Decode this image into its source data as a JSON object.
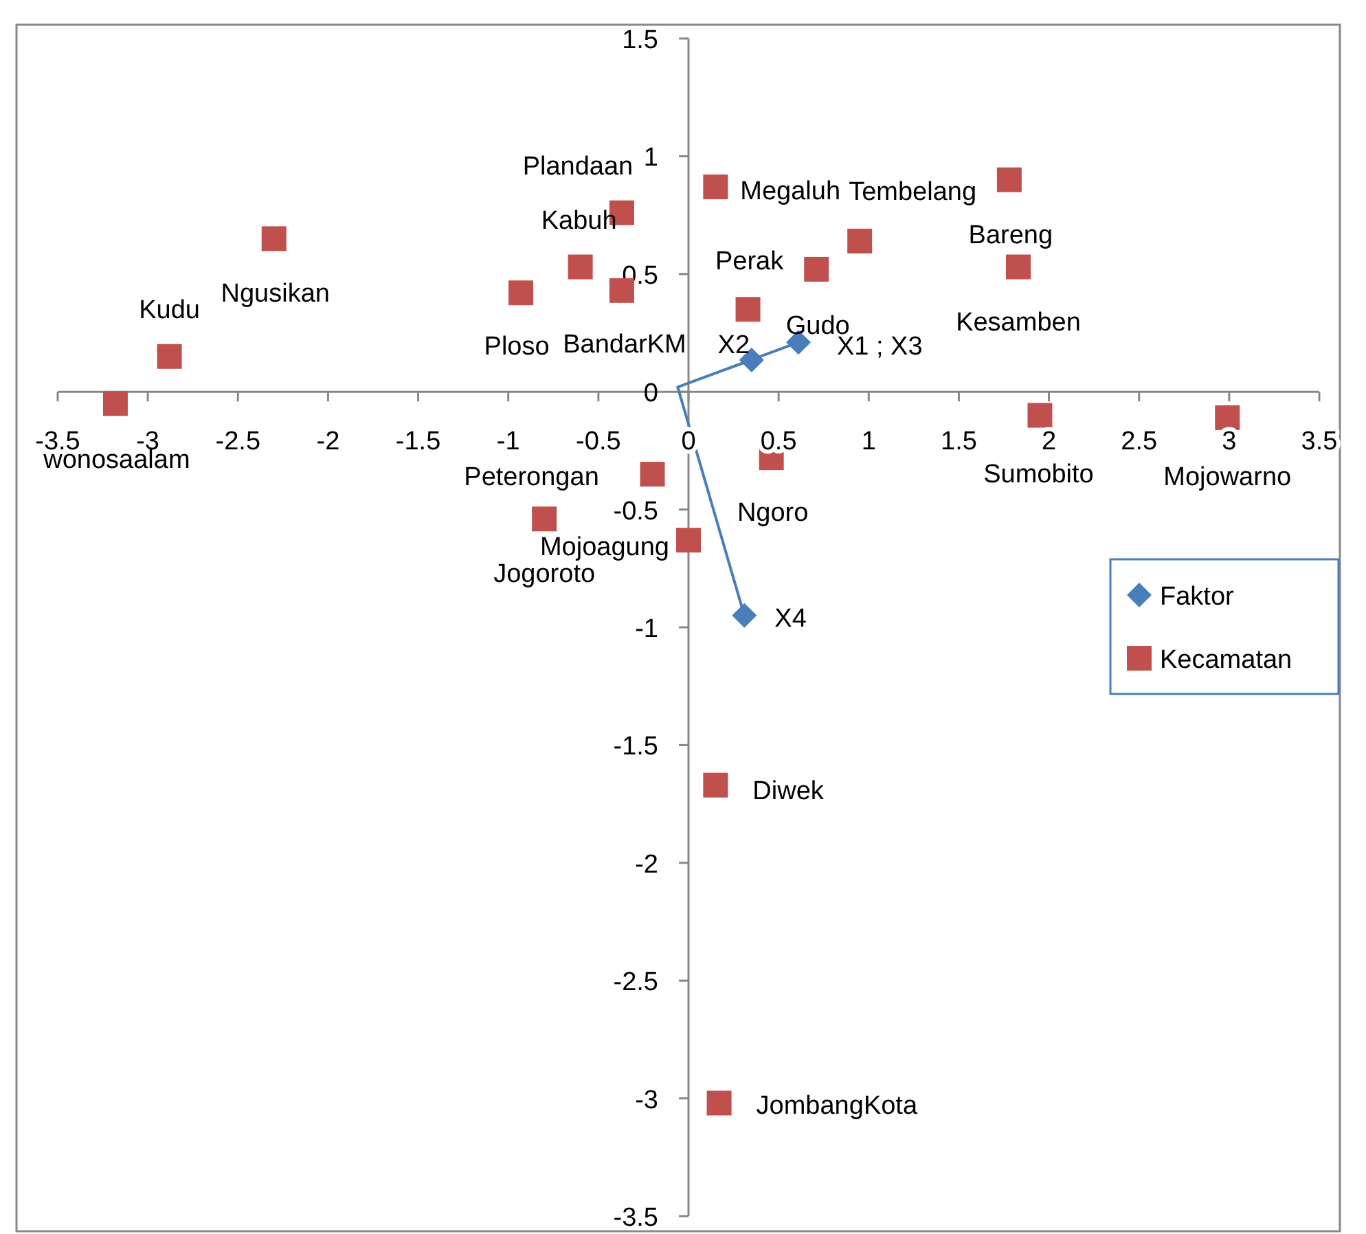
{
  "chart_data": {
    "type": "scatter",
    "xlim": [
      -3.5,
      3.5
    ],
    "ylim": [
      -3.5,
      1.5
    ],
    "xticks": [
      -3.5,
      -3,
      -2.5,
      -2,
      -1.5,
      -1,
      -0.5,
      0,
      0.5,
      1,
      1.5,
      2,
      2.5,
      3,
      3.5
    ],
    "yticks": [
      -3.5,
      -3,
      -2.5,
      -2,
      -1.5,
      -1,
      -0.5,
      0,
      0.5,
      1,
      1.5
    ],
    "grid": false,
    "legend": "right",
    "series": [
      {
        "type": "line",
        "marker": "none",
        "color": "#4a7ebb",
        "x": [
          0.61,
          -0.06,
          0.35,
          -0.06,
          0.31
        ],
        "values": [
          0.21,
          0.02,
          0.135,
          0.02,
          -0.95
        ]
      },
      {
        "name": "Faktor",
        "marker": "diamond",
        "color": "#4a7ebb",
        "x": [
          0.35,
          0.61,
          0.31
        ],
        "values": [
          0.135,
          0.21,
          -0.95
        ],
        "value_labels": [
          "X2",
          "X1 ; X3",
          "X4"
        ]
      },
      {
        "name": "Kecamatan",
        "marker": "square",
        "color": "#c0504d",
        "x": [
          -3.18,
          -2.88,
          -2.3,
          -0.93,
          -0.6,
          -0.37,
          -0.37,
          0.15,
          0.33,
          0.71,
          0.95,
          1.78,
          1.83,
          1.95,
          2.99,
          -0.2,
          0.46,
          -0.8,
          0,
          0.15,
          0.17
        ],
        "values": [
          -0.05,
          0.15,
          0.65,
          0.42,
          0.53,
          0.76,
          0.43,
          0.87,
          0.35,
          0.52,
          0.64,
          0.9,
          0.53,
          -0.1,
          -0.11,
          -0.35,
          -0.28,
          -0.54,
          -0.63,
          -1.67,
          -3.02
        ],
        "value_labels": [
          "wonosaalam",
          "Kudu",
          "Ngusikan",
          "Ploso",
          "Kabuh",
          "Plandaan",
          "BandarKM",
          "Megaluh",
          "Perak",
          "Gudo",
          "Tembelang",
          "Bareng",
          "Kesamben",
          "Sumobito",
          "Mojowarno",
          "Peterongan",
          "Ngoro",
          "Jogoroto",
          "Mojoagung",
          "Diwek",
          "JombangKota"
        ]
      }
    ]
  }
}
